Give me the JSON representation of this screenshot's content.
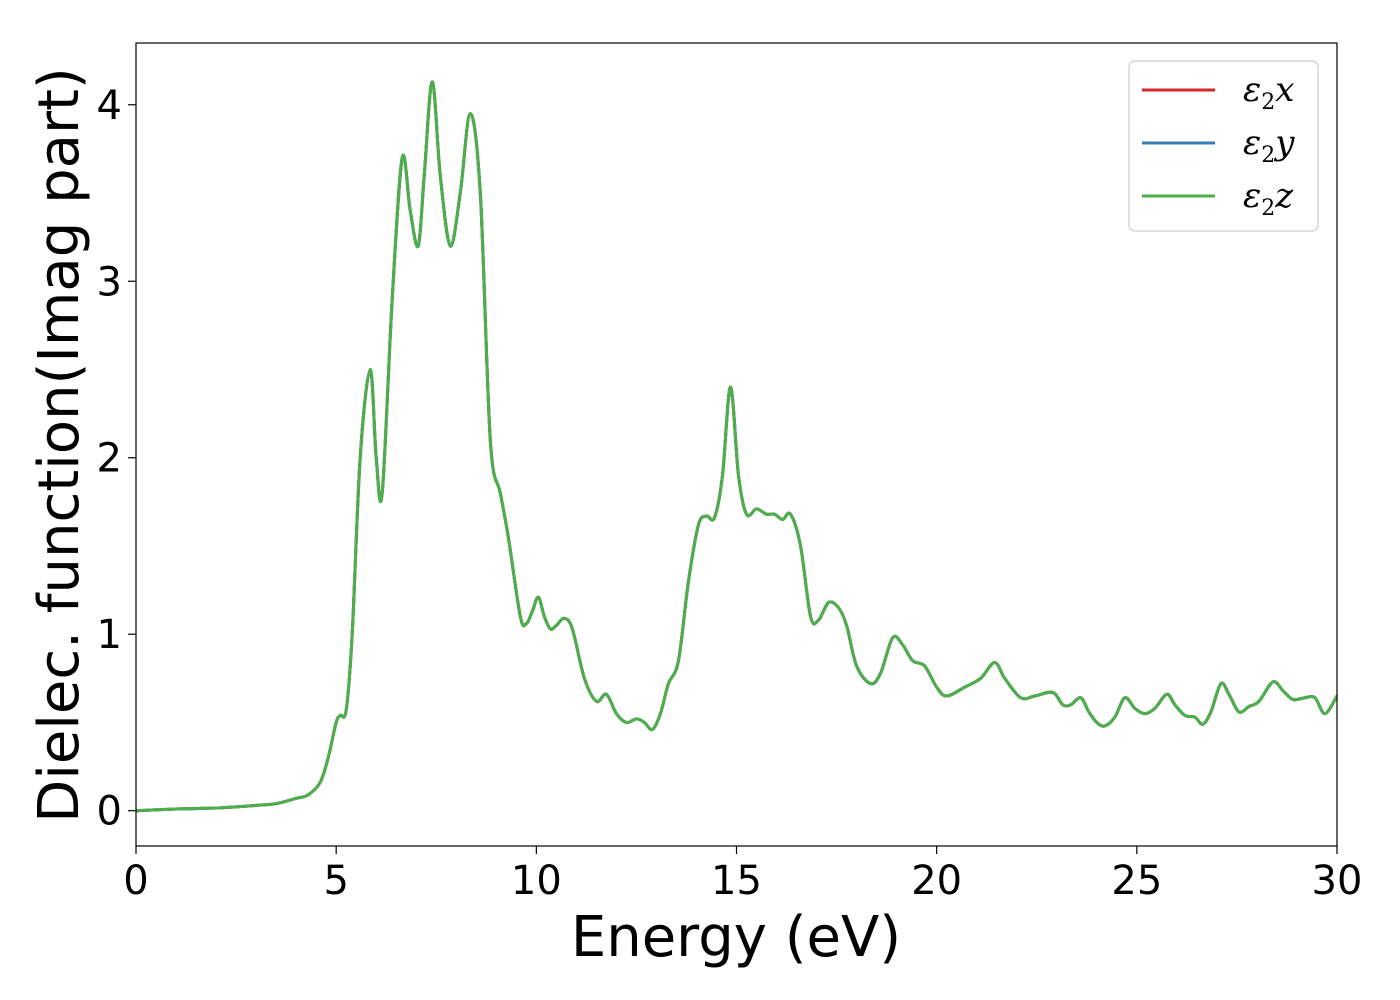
{
  "chart_data": {
    "type": "line",
    "title": "",
    "xlabel": "Energy (eV)",
    "ylabel": "Dielec. function(Imag part)",
    "xlim": [
      0,
      30
    ],
    "ylim": [
      -0.2,
      4.35
    ],
    "xticks": [
      0,
      5,
      10,
      15,
      20,
      25,
      30
    ],
    "xtick_labels": [
      "0",
      "5",
      "10",
      "15",
      "20",
      "25",
      "30"
    ],
    "yticks": [
      0,
      1,
      2,
      3,
      4
    ],
    "ytick_labels": [
      "0",
      "1",
      "2",
      "3",
      "4"
    ],
    "grid": false,
    "legend_position": "top-right",
    "x": [
      0,
      1,
      2,
      3,
      3.5,
      4,
      4.3,
      4.6,
      4.8,
      5.0,
      5.1,
      5.25,
      5.4,
      5.6,
      5.85,
      6.0,
      6.15,
      6.4,
      6.65,
      6.85,
      7.05,
      7.2,
      7.4,
      7.6,
      7.85,
      8.1,
      8.35,
      8.6,
      8.85,
      9.1,
      9.3,
      9.6,
      9.75,
      9.9,
      10.05,
      10.2,
      10.35,
      10.5,
      10.7,
      10.9,
      11.2,
      11.5,
      11.75,
      12.0,
      12.25,
      12.5,
      12.7,
      12.9,
      13.1,
      13.3,
      13.55,
      13.8,
      14.05,
      14.25,
      14.45,
      14.65,
      14.85,
      15.05,
      15.25,
      15.5,
      15.75,
      15.95,
      16.15,
      16.35,
      16.6,
      16.85,
      17.05,
      17.3,
      17.55,
      17.75,
      18.0,
      18.35,
      18.6,
      18.9,
      19.15,
      19.4,
      19.7,
      20.0,
      20.25,
      20.7,
      21.1,
      21.45,
      21.7,
      22.1,
      22.45,
      22.9,
      23.15,
      23.35,
      23.6,
      23.8,
      24.0,
      24.2,
      24.45,
      24.7,
      24.95,
      25.2,
      25.45,
      25.75,
      25.95,
      26.2,
      26.45,
      26.65,
      26.85,
      27.1,
      27.3,
      27.55,
      27.8,
      28.05,
      28.4,
      28.65,
      28.9,
      29.2,
      29.45,
      29.7,
      30
    ],
    "series": [
      {
        "name": "x",
        "color": "#d62728",
        "values": [
          0,
          0.01,
          0.015,
          0.03,
          0.04,
          0.07,
          0.09,
          0.16,
          0.3,
          0.5,
          0.54,
          0.57,
          1.0,
          2.0,
          2.5,
          2.0,
          1.8,
          2.9,
          3.7,
          3.4,
          3.2,
          3.6,
          4.13,
          3.6,
          3.2,
          3.5,
          3.95,
          3.5,
          2.1,
          1.8,
          1.55,
          1.1,
          1.06,
          1.13,
          1.21,
          1.1,
          1.03,
          1.05,
          1.09,
          1.03,
          0.75,
          0.62,
          0.66,
          0.55,
          0.5,
          0.52,
          0.5,
          0.46,
          0.55,
          0.72,
          0.85,
          1.3,
          1.62,
          1.67,
          1.66,
          1.9,
          2.4,
          1.9,
          1.68,
          1.71,
          1.68,
          1.68,
          1.65,
          1.68,
          1.5,
          1.1,
          1.08,
          1.18,
          1.15,
          1.05,
          0.82,
          0.72,
          0.78,
          0.98,
          0.94,
          0.85,
          0.82,
          0.7,
          0.65,
          0.7,
          0.75,
          0.84,
          0.75,
          0.64,
          0.65,
          0.67,
          0.6,
          0.6,
          0.64,
          0.56,
          0.5,
          0.48,
          0.53,
          0.64,
          0.58,
          0.55,
          0.58,
          0.66,
          0.6,
          0.54,
          0.53,
          0.49,
          0.56,
          0.72,
          0.66,
          0.56,
          0.59,
          0.62,
          0.73,
          0.68,
          0.63,
          0.64,
          0.64,
          0.55,
          0.65
        ]
      },
      {
        "name": "y",
        "color": "#377eb8",
        "values": [
          0,
          0.01,
          0.015,
          0.03,
          0.04,
          0.07,
          0.09,
          0.16,
          0.3,
          0.5,
          0.54,
          0.57,
          1.0,
          2.0,
          2.5,
          2.0,
          1.8,
          2.9,
          3.7,
          3.4,
          3.2,
          3.6,
          4.13,
          3.6,
          3.2,
          3.5,
          3.95,
          3.5,
          2.1,
          1.8,
          1.55,
          1.1,
          1.06,
          1.13,
          1.21,
          1.1,
          1.03,
          1.05,
          1.09,
          1.03,
          0.75,
          0.62,
          0.66,
          0.55,
          0.5,
          0.52,
          0.5,
          0.46,
          0.55,
          0.72,
          0.85,
          1.3,
          1.62,
          1.67,
          1.66,
          1.9,
          2.4,
          1.9,
          1.68,
          1.71,
          1.68,
          1.68,
          1.65,
          1.68,
          1.5,
          1.1,
          1.08,
          1.18,
          1.15,
          1.05,
          0.82,
          0.72,
          0.78,
          0.98,
          0.94,
          0.85,
          0.82,
          0.7,
          0.65,
          0.7,
          0.75,
          0.84,
          0.75,
          0.64,
          0.65,
          0.67,
          0.6,
          0.6,
          0.64,
          0.56,
          0.5,
          0.48,
          0.53,
          0.64,
          0.58,
          0.55,
          0.58,
          0.66,
          0.6,
          0.54,
          0.53,
          0.49,
          0.56,
          0.72,
          0.66,
          0.56,
          0.59,
          0.62,
          0.73,
          0.68,
          0.63,
          0.64,
          0.64,
          0.55,
          0.65
        ]
      },
      {
        "name": "z",
        "color": "#4daf4a",
        "values": [
          0,
          0.01,
          0.015,
          0.03,
          0.04,
          0.07,
          0.09,
          0.16,
          0.3,
          0.5,
          0.54,
          0.57,
          1.0,
          2.0,
          2.5,
          2.0,
          1.8,
          2.9,
          3.7,
          3.4,
          3.2,
          3.6,
          4.13,
          3.6,
          3.2,
          3.5,
          3.95,
          3.5,
          2.1,
          1.8,
          1.55,
          1.1,
          1.06,
          1.13,
          1.21,
          1.1,
          1.03,
          1.05,
          1.09,
          1.03,
          0.75,
          0.62,
          0.66,
          0.55,
          0.5,
          0.52,
          0.5,
          0.46,
          0.55,
          0.72,
          0.85,
          1.3,
          1.62,
          1.67,
          1.66,
          1.9,
          2.4,
          1.9,
          1.68,
          1.71,
          1.68,
          1.68,
          1.65,
          1.68,
          1.5,
          1.1,
          1.08,
          1.18,
          1.15,
          1.05,
          0.82,
          0.72,
          0.78,
          0.98,
          0.94,
          0.85,
          0.82,
          0.7,
          0.65,
          0.7,
          0.75,
          0.84,
          0.75,
          0.64,
          0.65,
          0.67,
          0.6,
          0.6,
          0.64,
          0.56,
          0.5,
          0.48,
          0.53,
          0.64,
          0.58,
          0.55,
          0.58,
          0.66,
          0.6,
          0.54,
          0.53,
          0.49,
          0.56,
          0.72,
          0.66,
          0.56,
          0.59,
          0.62,
          0.73,
          0.68,
          0.63,
          0.64,
          0.64,
          0.55,
          0.65
        ]
      }
    ],
    "legend": {
      "symbol": "ε",
      "subscript": "2",
      "entries": [
        "x",
        "y",
        "z"
      ]
    }
  }
}
